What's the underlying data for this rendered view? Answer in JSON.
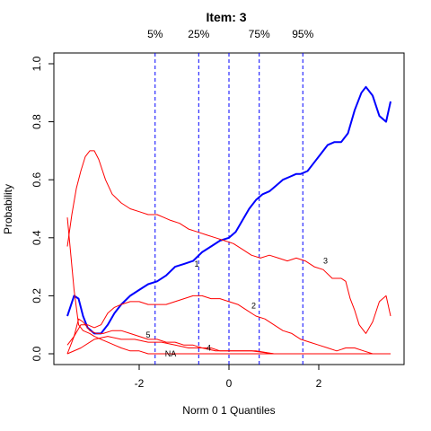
{
  "chart_data": {
    "type": "line",
    "title": "Item:  3",
    "xlabel": "Norm 0 1 Quantiles",
    "ylabel": "Probability",
    "xlim": [
      -3.6,
      3.6
    ],
    "ylim": [
      0,
      1
    ],
    "x_ticks": [
      -2,
      0,
      2
    ],
    "x_tick_labels": [
      "-2",
      "0",
      "2"
    ],
    "y_ticks": [
      0.0,
      0.2,
      0.4,
      0.6,
      0.8,
      1.0
    ],
    "y_tick_labels": [
      "0.0",
      "0.2",
      "0.4",
      "0.6",
      "0.8",
      "1.0"
    ],
    "grid": false,
    "quantile_lines": [
      {
        "label": "5%",
        "x": -1.645
      },
      {
        "label": "25%",
        "x": -0.674
      },
      {
        "label": "",
        "x": 0
      },
      {
        "label": "75%",
        "x": 0.674
      },
      {
        "label": "95%",
        "x": 1.645
      }
    ],
    "series": [
      {
        "name": "3",
        "color": "#0000ff",
        "width": 2,
        "label_point": [
          -0.72,
          0.31
        ],
        "label_text": "1",
        "points": [
          [
            -3.6,
            0.13
          ],
          [
            -3.45,
            0.2
          ],
          [
            -3.35,
            0.19
          ],
          [
            -3.25,
            0.13
          ],
          [
            -3.15,
            0.09
          ],
          [
            -3.0,
            0.07
          ],
          [
            -2.85,
            0.07
          ],
          [
            -2.7,
            0.1
          ],
          [
            -2.55,
            0.14
          ],
          [
            -2.4,
            0.17
          ],
          [
            -2.2,
            0.2
          ],
          [
            -2.0,
            0.22
          ],
          [
            -1.8,
            0.24
          ],
          [
            -1.6,
            0.25
          ],
          [
            -1.4,
            0.27
          ],
          [
            -1.2,
            0.3
          ],
          [
            -1.0,
            0.31
          ],
          [
            -0.8,
            0.32
          ],
          [
            -0.6,
            0.35
          ],
          [
            -0.4,
            0.37
          ],
          [
            -0.2,
            0.39
          ],
          [
            0.0,
            0.4
          ],
          [
            0.15,
            0.42
          ],
          [
            0.3,
            0.46
          ],
          [
            0.45,
            0.5
          ],
          [
            0.6,
            0.53
          ],
          [
            0.75,
            0.55
          ],
          [
            0.9,
            0.56
          ],
          [
            1.05,
            0.58
          ],
          [
            1.2,
            0.6
          ],
          [
            1.35,
            0.61
          ],
          [
            1.5,
            0.62
          ],
          [
            1.6,
            0.62
          ],
          [
            1.75,
            0.63
          ],
          [
            1.9,
            0.66
          ],
          [
            2.05,
            0.69
          ],
          [
            2.2,
            0.72
          ],
          [
            2.35,
            0.73
          ],
          [
            2.5,
            0.73
          ],
          [
            2.65,
            0.76
          ],
          [
            2.8,
            0.84
          ],
          [
            2.95,
            0.9
          ],
          [
            3.05,
            0.92
          ],
          [
            3.2,
            0.89
          ],
          [
            3.35,
            0.82
          ],
          [
            3.5,
            0.8
          ],
          [
            3.6,
            0.87
          ]
        ]
      },
      {
        "name": "3",
        "color": "#ff0000",
        "width": 1,
        "label_point": [
          2.15,
          0.32
        ],
        "label_text": "3",
        "points": [
          [
            -3.6,
            0.37
          ],
          [
            -3.5,
            0.48
          ],
          [
            -3.4,
            0.57
          ],
          [
            -3.3,
            0.63
          ],
          [
            -3.2,
            0.68
          ],
          [
            -3.1,
            0.7
          ],
          [
            -3.0,
            0.7
          ],
          [
            -2.9,
            0.67
          ],
          [
            -2.75,
            0.6
          ],
          [
            -2.6,
            0.55
          ],
          [
            -2.4,
            0.52
          ],
          [
            -2.2,
            0.5
          ],
          [
            -2.0,
            0.49
          ],
          [
            -1.8,
            0.48
          ],
          [
            -1.6,
            0.48
          ],
          [
            -1.45,
            0.47
          ],
          [
            -1.3,
            0.46
          ],
          [
            -1.1,
            0.45
          ],
          [
            -0.9,
            0.43
          ],
          [
            -0.7,
            0.42
          ],
          [
            -0.5,
            0.41
          ],
          [
            -0.3,
            0.4
          ],
          [
            -0.1,
            0.39
          ],
          [
            0.1,
            0.38
          ],
          [
            0.3,
            0.36
          ],
          [
            0.5,
            0.34
          ],
          [
            0.7,
            0.33
          ],
          [
            0.9,
            0.34
          ],
          [
            1.1,
            0.33
          ],
          [
            1.3,
            0.32
          ],
          [
            1.5,
            0.33
          ],
          [
            1.7,
            0.32
          ],
          [
            1.9,
            0.3
          ],
          [
            2.1,
            0.29
          ],
          [
            2.3,
            0.26
          ],
          [
            2.5,
            0.26
          ],
          [
            2.6,
            0.25
          ],
          [
            2.7,
            0.19
          ],
          [
            2.8,
            0.15
          ],
          [
            2.9,
            0.1
          ],
          [
            3.05,
            0.07
          ],
          [
            3.2,
            0.11
          ],
          [
            3.35,
            0.18
          ],
          [
            3.5,
            0.2
          ],
          [
            3.6,
            0.13
          ]
        ]
      },
      {
        "name": "2",
        "color": "#ff0000",
        "width": 1,
        "label_point": [
          0.55,
          0.165
        ],
        "label_text": "2",
        "points": [
          [
            -3.6,
            0.03
          ],
          [
            -3.45,
            0.06
          ],
          [
            -3.3,
            0.1
          ],
          [
            -3.15,
            0.1
          ],
          [
            -3.0,
            0.09
          ],
          [
            -2.85,
            0.1
          ],
          [
            -2.7,
            0.14
          ],
          [
            -2.55,
            0.16
          ],
          [
            -2.4,
            0.17
          ],
          [
            -2.2,
            0.18
          ],
          [
            -2.0,
            0.18
          ],
          [
            -1.8,
            0.17
          ],
          [
            -1.6,
            0.17
          ],
          [
            -1.4,
            0.17
          ],
          [
            -1.2,
            0.18
          ],
          [
            -1.0,
            0.19
          ],
          [
            -0.8,
            0.2
          ],
          [
            -0.6,
            0.2
          ],
          [
            -0.4,
            0.19
          ],
          [
            -0.2,
            0.19
          ],
          [
            0.0,
            0.18
          ],
          [
            0.2,
            0.17
          ],
          [
            0.4,
            0.15
          ],
          [
            0.6,
            0.13
          ],
          [
            0.8,
            0.12
          ],
          [
            1.0,
            0.1
          ],
          [
            1.2,
            0.08
          ],
          [
            1.4,
            0.07
          ],
          [
            1.6,
            0.05
          ],
          [
            1.8,
            0.04
          ],
          [
            2.0,
            0.03
          ],
          [
            2.2,
            0.02
          ],
          [
            2.4,
            0.01
          ],
          [
            2.6,
            0.02
          ],
          [
            2.8,
            0.02
          ],
          [
            3.0,
            0.01
          ],
          [
            3.2,
            0.0
          ],
          [
            3.4,
            0.0
          ],
          [
            3.6,
            0.0
          ]
        ]
      },
      {
        "name": "5",
        "color": "#ff0000",
        "width": 1,
        "label_point": [
          -1.8,
          0.065
        ],
        "label_text": "5",
        "points": [
          [
            -3.6,
            0.0
          ],
          [
            -3.45,
            0.06
          ],
          [
            -3.35,
            0.12
          ],
          [
            -3.25,
            0.11
          ],
          [
            -3.1,
            0.08
          ],
          [
            -2.95,
            0.07
          ],
          [
            -2.8,
            0.07
          ],
          [
            -2.6,
            0.08
          ],
          [
            -2.4,
            0.08
          ],
          [
            -2.2,
            0.07
          ],
          [
            -2.0,
            0.06
          ],
          [
            -1.8,
            0.05
          ],
          [
            -1.6,
            0.05
          ],
          [
            -1.4,
            0.04
          ],
          [
            -1.2,
            0.04
          ],
          [
            -1.0,
            0.03
          ],
          [
            -0.8,
            0.03
          ],
          [
            -0.6,
            0.02
          ],
          [
            -0.4,
            0.02
          ],
          [
            -0.2,
            0.01
          ],
          [
            0.0,
            0.01
          ],
          [
            0.3,
            0.01
          ],
          [
            0.6,
            0.01
          ],
          [
            1.0,
            0.0
          ],
          [
            1.5,
            0.0
          ],
          [
            2.0,
            0.0
          ],
          [
            2.5,
            0.0
          ],
          [
            3.0,
            0.0
          ],
          [
            3.6,
            0.0
          ]
        ]
      },
      {
        "name": "NA",
        "color": "#ff0000",
        "width": 1,
        "label_point": [
          -1.3,
          0.0
        ],
        "label_text": "NA",
        "points": [
          [
            -3.6,
            0.47
          ],
          [
            -3.45,
            0.22
          ],
          [
            -3.35,
            0.1
          ],
          [
            -3.25,
            0.08
          ],
          [
            -3.1,
            0.07
          ],
          [
            -3.0,
            0.06
          ],
          [
            -2.85,
            0.05
          ],
          [
            -2.7,
            0.04
          ],
          [
            -2.55,
            0.03
          ],
          [
            -2.4,
            0.02
          ],
          [
            -2.2,
            0.01
          ],
          [
            -2.0,
            0.01
          ],
          [
            -1.8,
            0.0
          ],
          [
            -1.5,
            0.0
          ],
          [
            -1.0,
            0.0
          ],
          [
            0.0,
            0.0
          ],
          [
            1.0,
            0.0
          ],
          [
            2.0,
            0.0
          ],
          [
            3.0,
            0.0
          ],
          [
            3.6,
            0.0
          ]
        ]
      },
      {
        "name": "4",
        "color": "#ff0000",
        "width": 1,
        "label_point": [
          -0.45,
          0.02
        ],
        "label_text": "4",
        "points": [
          [
            -3.6,
            0.0
          ],
          [
            -3.3,
            0.02
          ],
          [
            -3.0,
            0.05
          ],
          [
            -2.7,
            0.06
          ],
          [
            -2.4,
            0.05
          ],
          [
            -2.1,
            0.05
          ],
          [
            -1.8,
            0.04
          ],
          [
            -1.5,
            0.04
          ],
          [
            -1.2,
            0.03
          ],
          [
            -0.9,
            0.02
          ],
          [
            -0.6,
            0.02
          ],
          [
            -0.3,
            0.01
          ],
          [
            0.0,
            0.01
          ],
          [
            0.5,
            0.01
          ],
          [
            1.0,
            0.0
          ],
          [
            1.5,
            0.0
          ],
          [
            2.0,
            0.0
          ],
          [
            3.0,
            0.0
          ],
          [
            3.6,
            0.0
          ]
        ]
      }
    ]
  }
}
